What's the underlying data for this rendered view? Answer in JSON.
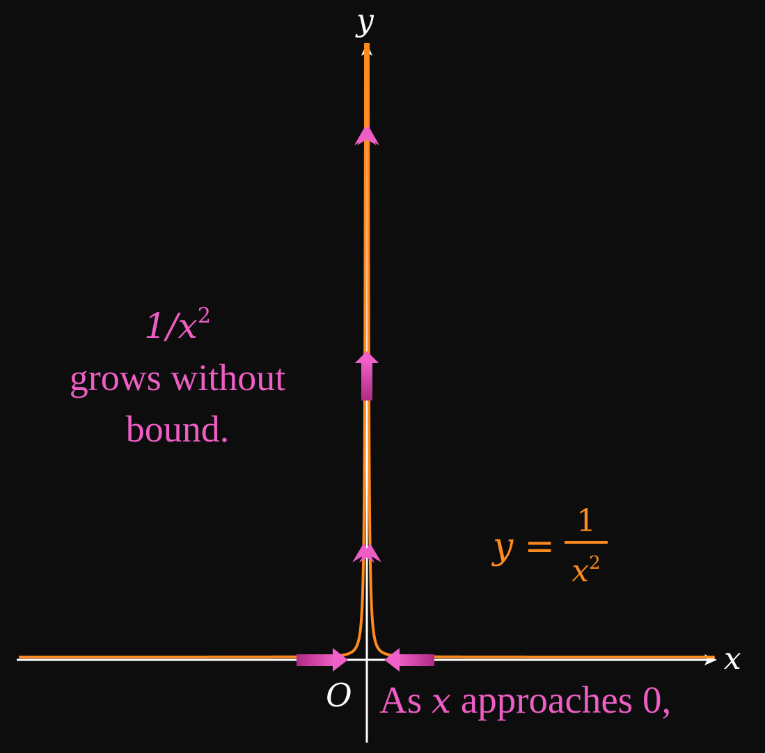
{
  "colors": {
    "background": "#0d0d0d",
    "axes": "#ffffff",
    "curve": "#ff8a1f",
    "annotation": "#ee5ec5",
    "arrow_fill_dark": "#b02a82",
    "arrow_fill_light": "#f060c8"
  },
  "axes": {
    "x_label": "x",
    "y_label": "y",
    "origin_label": "O"
  },
  "curve_label": {
    "lhs": "y",
    "equals": "=",
    "numerator": "1",
    "denominator_base": "x",
    "denominator_exp": "2"
  },
  "left_annotation": {
    "expr_base": "1/x",
    "expr_exp": "2",
    "line2": "grows without",
    "line3": "bound."
  },
  "bottom_annotation": {
    "prefix": "As",
    "variable": "x",
    "suffix": "approaches 0,"
  },
  "function": "1/x^2",
  "icons": [
    "up-arrow-icon",
    "right-arrow-icon",
    "left-arrow-icon"
  ]
}
